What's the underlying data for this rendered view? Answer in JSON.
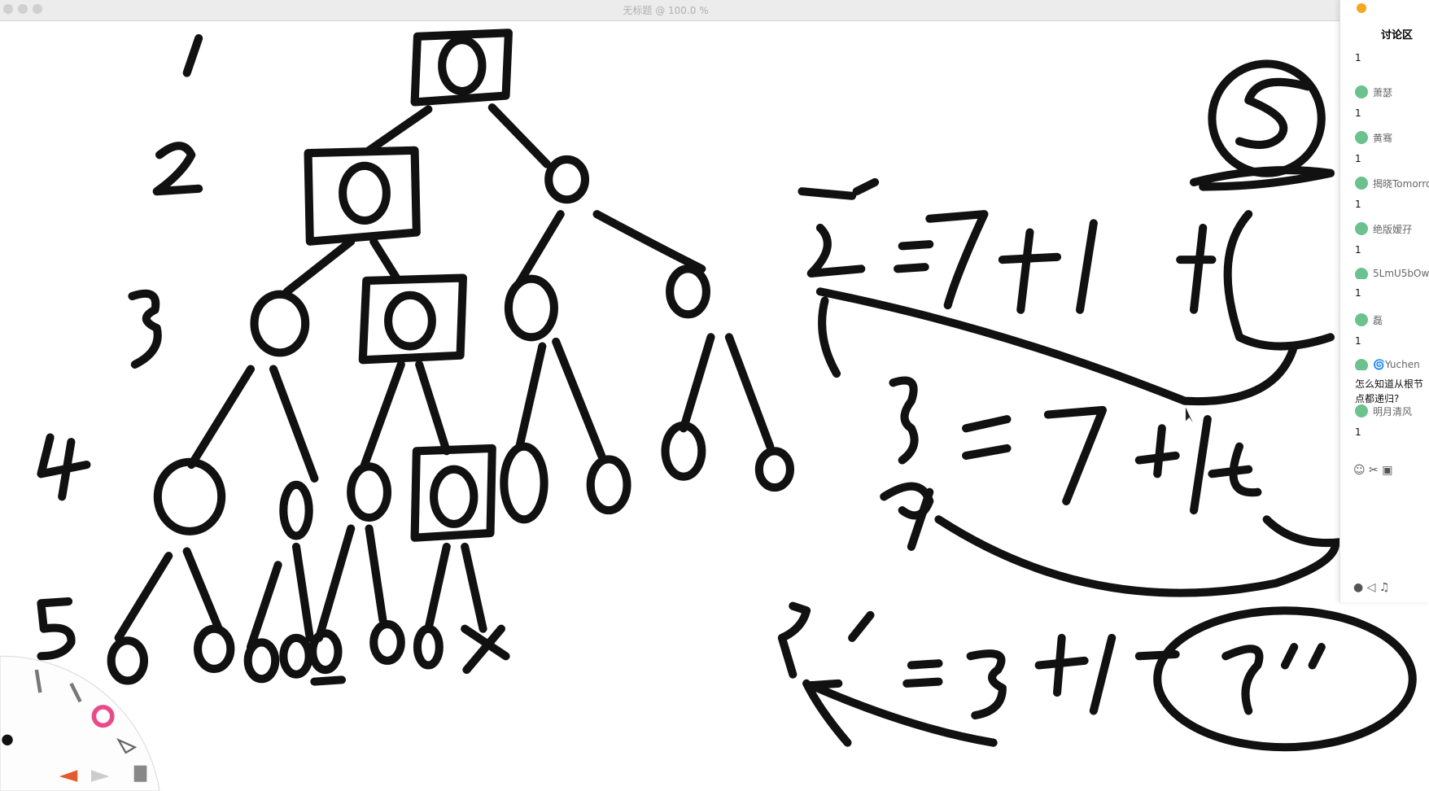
{
  "window_title": "无标题 @ 100.0 %",
  "chat": {
    "title": "讨论区",
    "messages": [
      {
        "text": "1"
      },
      {
        "user": "萧瑟",
        "text": "1"
      },
      {
        "user": "黄骞",
        "text": "1"
      },
      {
        "user": "揭晓Tomorro",
        "text": "1"
      },
      {
        "user": "绝版嫒孖",
        "text": "1"
      },
      {
        "user": "5LmU5bOw",
        "text": "1"
      },
      {
        "user": "磊",
        "text": "1"
      },
      {
        "user": "🌀Yuchen",
        "text": "怎么知道从根节点都递归?"
      },
      {
        "user": "明月清风",
        "text": "1"
      }
    ]
  }
}
